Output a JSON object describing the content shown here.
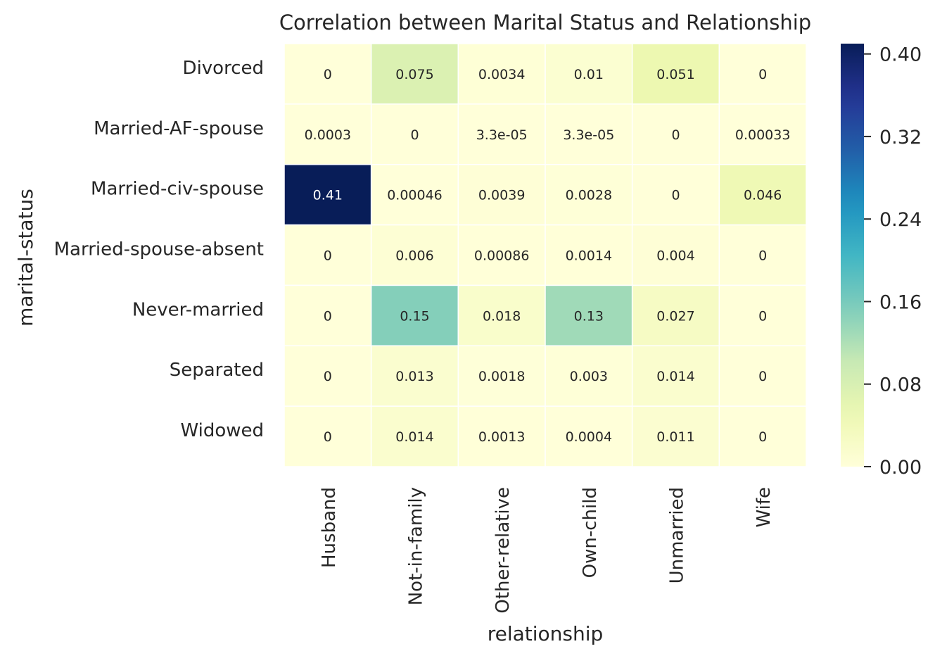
{
  "chart_data": {
    "type": "heatmap",
    "title": "Correlation between Marital Status and Relationship",
    "xlabel": "relationship",
    "ylabel": "marital-status",
    "x_categories": [
      "Husband",
      "Not-in-family",
      "Other-relative",
      "Own-child",
      "Unmarried",
      "Wife"
    ],
    "y_categories": [
      "Divorced",
      "Married-AF-spouse",
      "Married-civ-spouse",
      "Married-spouse-absent",
      "Never-married",
      "Separated",
      "Widowed"
    ],
    "values": [
      [
        0,
        0.075,
        0.0034,
        0.01,
        0.051,
        0
      ],
      [
        0.0003,
        0,
        3.3e-05,
        3.3e-05,
        0,
        0.00033
      ],
      [
        0.41,
        0.00046,
        0.0039,
        0.0028,
        0,
        0.046
      ],
      [
        0,
        0.006,
        0.00086,
        0.0014,
        0.004,
        0
      ],
      [
        0,
        0.15,
        0.018,
        0.13,
        0.027,
        0
      ],
      [
        0,
        0.013,
        0.0018,
        0.003,
        0.014,
        0
      ],
      [
        0,
        0.014,
        0.0013,
        0.0004,
        0.011,
        0
      ]
    ],
    "annotations": [
      [
        "0",
        "0.075",
        "0.0034",
        "0.01",
        "0.051",
        "0"
      ],
      [
        "0.0003",
        "0",
        "3.3e-05",
        "3.3e-05",
        "0",
        "0.00033"
      ],
      [
        "0.41",
        "0.00046",
        "0.0039",
        "0.0028",
        "0",
        "0.046"
      ],
      [
        "0",
        "0.006",
        "0.00086",
        "0.0014",
        "0.004",
        "0"
      ],
      [
        "0",
        "0.15",
        "0.018",
        "0.13",
        "0.027",
        "0"
      ],
      [
        "0",
        "0.013",
        "0.0018",
        "0.003",
        "0.014",
        "0"
      ],
      [
        "0",
        "0.014",
        "0.0013",
        "0.0004",
        "0.011",
        "0"
      ]
    ],
    "colormap": "YlGnBu",
    "colorbar": {
      "vmin": 0,
      "vmax": 0.41,
      "ticks": [
        0,
        0.08,
        0.16,
        0.24,
        0.32,
        0.4
      ],
      "tick_labels": [
        "0.00",
        "0.08",
        "0.16",
        "0.24",
        "0.32",
        "0.40"
      ]
    },
    "cell_border_color": "#ffffff",
    "grid": false
  }
}
